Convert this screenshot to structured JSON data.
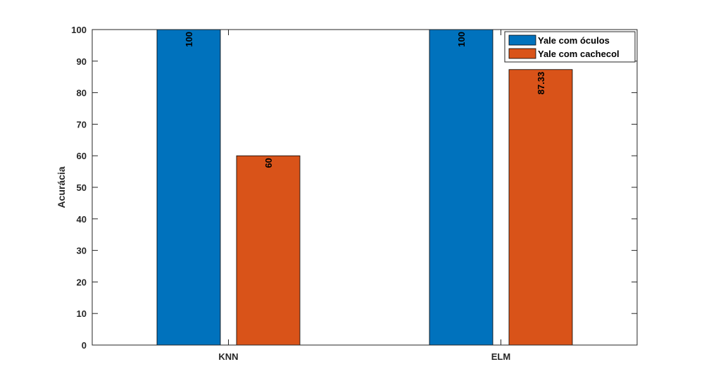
{
  "chart_data": {
    "type": "bar",
    "categories": [
      "KNN",
      "ELM"
    ],
    "series": [
      {
        "name": "Yale com óculos",
        "values": [
          100,
          100
        ],
        "labels": [
          "100",
          "100"
        ],
        "color": "#0072BD"
      },
      {
        "name": "Yale com cachecol",
        "values": [
          60,
          87.33
        ],
        "labels": [
          "60",
          "87.33"
        ],
        "color": "#D95319"
      }
    ],
    "title": "",
    "xlabel": "",
    "ylabel": "Acurácia",
    "ylim": [
      0,
      100
    ],
    "yticks": [
      "0",
      "10",
      "20",
      "30",
      "40",
      "50",
      "60",
      "70",
      "80",
      "90",
      "100"
    ],
    "grid": false,
    "legend_position": "top-right"
  }
}
